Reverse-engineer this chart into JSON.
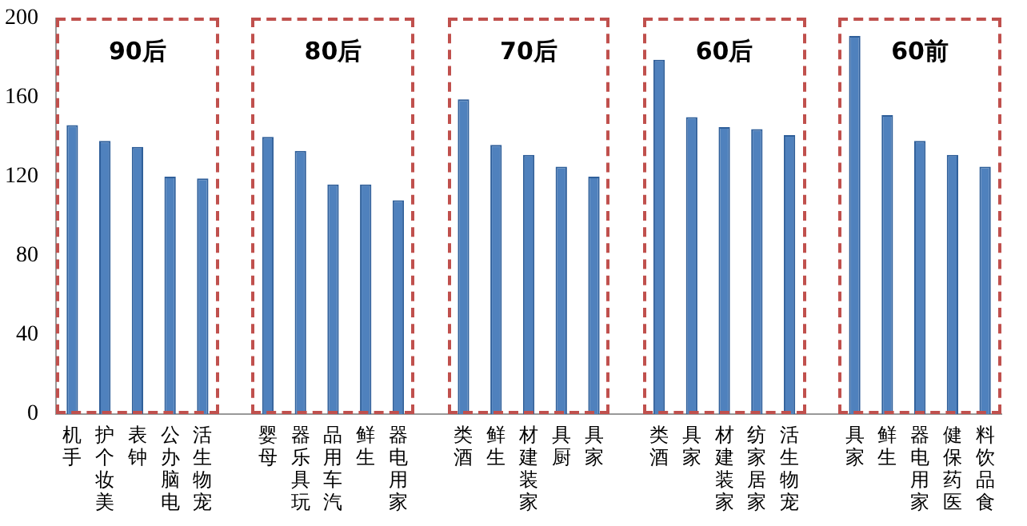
{
  "chart_data": {
    "type": "bar",
    "categories": [
      "手机",
      "美妆个护",
      "钟表",
      "电脑办公",
      "宠物生活",
      null,
      "母婴",
      "玩具乐器",
      "汽车用品",
      "生鲜",
      "家用电器",
      null,
      "酒类",
      "生鲜",
      "家装建材",
      "厨具",
      "家具",
      null,
      "酒类",
      "家具",
      "家装建材",
      "家居家纺",
      "宠物生活",
      null,
      "家具",
      "生鲜",
      "家用电器",
      "医药保健",
      "食品饮料"
    ],
    "values": [
      146,
      138,
      135,
      120,
      119,
      null,
      140,
      133,
      116,
      116,
      108,
      null,
      159,
      136,
      131,
      125,
      120,
      null,
      179,
      150,
      145,
      144,
      141,
      null,
      191,
      151,
      138,
      131,
      125
    ],
    "color": "#4f81bd",
    "ylim": [
      0,
      200
    ],
    "yticks": [
      0,
      40,
      80,
      120,
      160,
      200
    ],
    "grid": false,
    "annotations": [
      "90后",
      "80后",
      "70后",
      "60后",
      "60前"
    ]
  }
}
